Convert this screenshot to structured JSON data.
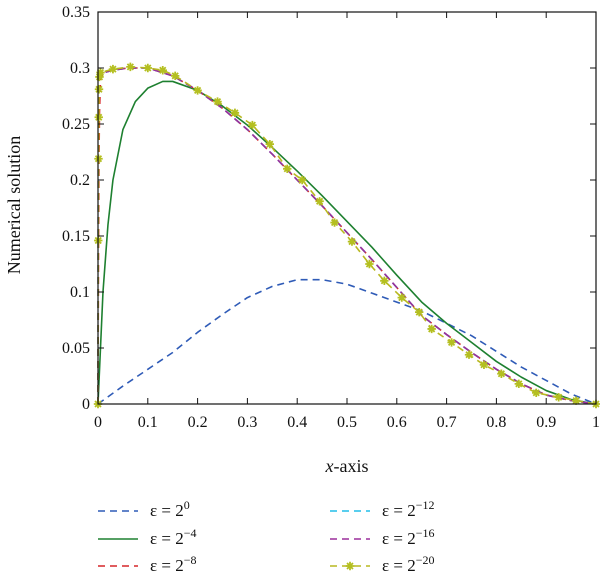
{
  "chart_data": {
    "type": "line",
    "xlabel_italic": "x",
    "xlabel_rest": "-axis",
    "ylabel": "Numerical solution",
    "xlim": [
      0,
      1
    ],
    "ylim": [
      0,
      0.35
    ],
    "x_ticks": [
      "0",
      "0.1",
      "0.2",
      "0.3",
      "0.4",
      "0.5",
      "0.6",
      "0.7",
      "0.8",
      "0.9",
      "1"
    ],
    "y_ticks": [
      "0",
      "0.05",
      "0.1",
      "0.15",
      "0.2",
      "0.25",
      "0.3",
      "0.35"
    ],
    "legend_placement": "bottom",
    "series": [
      {
        "label_base": "ε = 2",
        "label_exp": "0",
        "color": "#2f5bb7",
        "dash": "7,5",
        "marker": "none",
        "points": [
          [
            0,
            0
          ],
          [
            0.05,
            0.016
          ],
          [
            0.1,
            0.031
          ],
          [
            0.15,
            0.046
          ],
          [
            0.2,
            0.064
          ],
          [
            0.25,
            0.08
          ],
          [
            0.3,
            0.095
          ],
          [
            0.35,
            0.105
          ],
          [
            0.4,
            0.111
          ],
          [
            0.45,
            0.111
          ],
          [
            0.5,
            0.107
          ],
          [
            0.55,
            0.099
          ],
          [
            0.6,
            0.091
          ],
          [
            0.65,
            0.083
          ],
          [
            0.7,
            0.072
          ],
          [
            0.75,
            0.061
          ],
          [
            0.8,
            0.047
          ],
          [
            0.85,
            0.033
          ],
          [
            0.9,
            0.021
          ],
          [
            0.95,
            0.009
          ],
          [
            1,
            0
          ]
        ]
      },
      {
        "label_base": "ε = 2",
        "label_exp": "−4",
        "color": "#1e8030",
        "dash": "",
        "marker": "none",
        "points": [
          [
            0,
            0
          ],
          [
            0.005,
            0.05
          ],
          [
            0.01,
            0.1
          ],
          [
            0.02,
            0.16
          ],
          [
            0.03,
            0.2
          ],
          [
            0.05,
            0.245
          ],
          [
            0.075,
            0.27
          ],
          [
            0.1,
            0.282
          ],
          [
            0.13,
            0.288
          ],
          [
            0.15,
            0.288
          ],
          [
            0.2,
            0.28
          ],
          [
            0.25,
            0.266
          ],
          [
            0.3,
            0.249
          ],
          [
            0.35,
            0.229
          ],
          [
            0.4,
            0.208
          ],
          [
            0.45,
            0.186
          ],
          [
            0.5,
            0.163
          ],
          [
            0.55,
            0.14
          ],
          [
            0.6,
            0.115
          ],
          [
            0.65,
            0.091
          ],
          [
            0.7,
            0.072
          ],
          [
            0.75,
            0.055
          ],
          [
            0.8,
            0.038
          ],
          [
            0.85,
            0.024
          ],
          [
            0.9,
            0.012
          ],
          [
            0.95,
            0.004
          ],
          [
            1,
            0
          ]
        ]
      },
      {
        "label_base": "ε = 2",
        "label_exp": "−8",
        "color": "#d62728",
        "dash": "7,5",
        "marker": "none",
        "points": [
          [
            0,
            0
          ],
          [
            0.001,
            0.14
          ],
          [
            0.002,
            0.22
          ],
          [
            0.003,
            0.26
          ],
          [
            0.005,
            0.29
          ],
          [
            0.01,
            0.296
          ],
          [
            0.03,
            0.298
          ],
          [
            0.06,
            0.3
          ],
          [
            0.1,
            0.3
          ],
          [
            0.15,
            0.293
          ],
          [
            0.2,
            0.28
          ],
          [
            0.25,
            0.264
          ],
          [
            0.3,
            0.245
          ],
          [
            0.35,
            0.223
          ],
          [
            0.4,
            0.2
          ],
          [
            0.45,
            0.177
          ],
          [
            0.5,
            0.153
          ],
          [
            0.55,
            0.129
          ],
          [
            0.6,
            0.104
          ],
          [
            0.65,
            0.079
          ],
          [
            0.7,
            0.062
          ],
          [
            0.75,
            0.046
          ],
          [
            0.8,
            0.031
          ],
          [
            0.85,
            0.018
          ],
          [
            0.9,
            0.008
          ],
          [
            0.95,
            0.003
          ],
          [
            1,
            0
          ]
        ]
      },
      {
        "label_base": "ε = 2",
        "label_exp": "−12",
        "color": "#22bde8",
        "dash": "7,5",
        "marker": "none",
        "points": [
          [
            0,
            0
          ],
          [
            0.0005,
            0.2
          ],
          [
            0.001,
            0.27
          ],
          [
            0.002,
            0.29
          ],
          [
            0.005,
            0.295
          ],
          [
            0.03,
            0.298
          ],
          [
            0.06,
            0.3
          ],
          [
            0.1,
            0.3
          ],
          [
            0.15,
            0.293
          ],
          [
            0.2,
            0.28
          ],
          [
            0.25,
            0.264
          ],
          [
            0.3,
            0.245
          ],
          [
            0.35,
            0.223
          ],
          [
            0.4,
            0.2
          ],
          [
            0.45,
            0.177
          ],
          [
            0.5,
            0.153
          ],
          [
            0.55,
            0.129
          ],
          [
            0.6,
            0.104
          ],
          [
            0.65,
            0.079
          ],
          [
            0.7,
            0.062
          ],
          [
            0.75,
            0.046
          ],
          [
            0.8,
            0.031
          ],
          [
            0.85,
            0.018
          ],
          [
            0.9,
            0.008
          ],
          [
            0.95,
            0.003
          ],
          [
            1,
            0
          ]
        ]
      },
      {
        "label_base": "ε = 2",
        "label_exp": "−16",
        "color": "#9b2f9b",
        "dash": "7,5",
        "marker": "none",
        "points": [
          [
            0,
            0
          ],
          [
            0.0005,
            0.22
          ],
          [
            0.001,
            0.28
          ],
          [
            0.002,
            0.292
          ],
          [
            0.005,
            0.295
          ],
          [
            0.03,
            0.298
          ],
          [
            0.06,
            0.3
          ],
          [
            0.1,
            0.3
          ],
          [
            0.15,
            0.293
          ],
          [
            0.2,
            0.28
          ],
          [
            0.25,
            0.264
          ],
          [
            0.3,
            0.245
          ],
          [
            0.35,
            0.223
          ],
          [
            0.4,
            0.2
          ],
          [
            0.45,
            0.177
          ],
          [
            0.5,
            0.153
          ],
          [
            0.55,
            0.129
          ],
          [
            0.6,
            0.104
          ],
          [
            0.65,
            0.079
          ],
          [
            0.7,
            0.062
          ],
          [
            0.75,
            0.046
          ],
          [
            0.8,
            0.031
          ],
          [
            0.85,
            0.018
          ],
          [
            0.9,
            0.008
          ],
          [
            0.95,
            0.003
          ],
          [
            1,
            0
          ]
        ]
      },
      {
        "label_base": "ε = 2",
        "label_exp": "−20",
        "color": "#b8b820",
        "dash": "7,5",
        "marker": "star",
        "marker_color": "#b4bf20",
        "points": [
          [
            0,
            0
          ],
          [
            0.0005,
            0.146
          ],
          [
            0.001,
            0.219
          ],
          [
            0.0015,
            0.256
          ],
          [
            0.002,
            0.281
          ],
          [
            0.003,
            0.292
          ],
          [
            0.005,
            0.296
          ],
          [
            0.03,
            0.299
          ],
          [
            0.065,
            0.301
          ],
          [
            0.1,
            0.3
          ],
          [
            0.13,
            0.298
          ],
          [
            0.155,
            0.293
          ],
          [
            0.2,
            0.28
          ],
          [
            0.24,
            0.27
          ],
          [
            0.275,
            0.26
          ],
          [
            0.31,
            0.249
          ],
          [
            0.345,
            0.232
          ],
          [
            0.38,
            0.21
          ],
          [
            0.41,
            0.2
          ],
          [
            0.445,
            0.181
          ],
          [
            0.475,
            0.162
          ],
          [
            0.51,
            0.145
          ],
          [
            0.545,
            0.125
          ],
          [
            0.575,
            0.11
          ],
          [
            0.61,
            0.095
          ],
          [
            0.645,
            0.082
          ],
          [
            0.67,
            0.067
          ],
          [
            0.71,
            0.055
          ],
          [
            0.745,
            0.044
          ],
          [
            0.775,
            0.035
          ],
          [
            0.81,
            0.027
          ],
          [
            0.845,
            0.018
          ],
          [
            0.88,
            0.01
          ],
          [
            0.925,
            0.006
          ],
          [
            0.96,
            0.003
          ],
          [
            1,
            0
          ]
        ]
      }
    ]
  }
}
